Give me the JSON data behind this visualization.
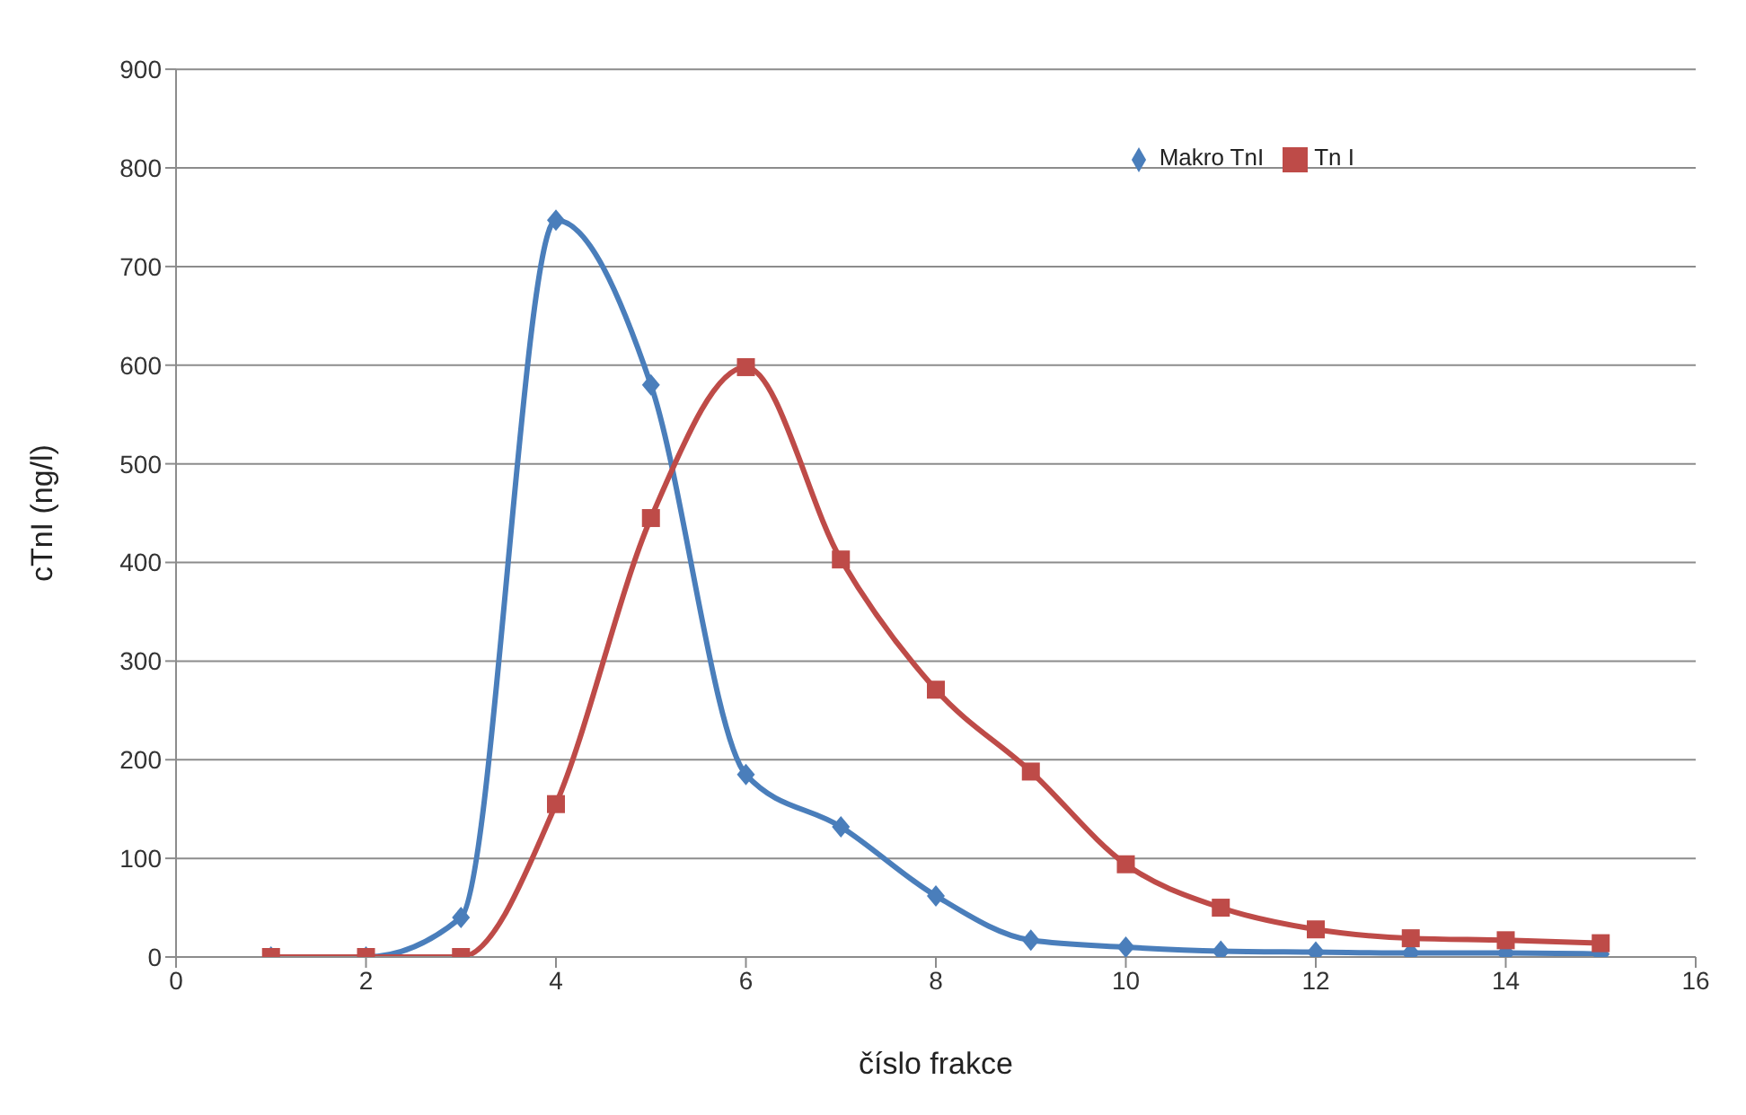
{
  "chart_data": {
    "type": "line",
    "xlabel": "číslo frakce",
    "ylabel": "cTnI (ng/l)",
    "x": [
      1,
      2,
      3,
      4,
      5,
      6,
      7,
      8,
      9,
      10,
      11,
      12,
      13,
      14,
      15
    ],
    "series": [
      {
        "name": "Makro TnI",
        "color": "#4a7ebb",
        "marker": "diamond",
        "values": [
          0,
          0,
          40,
          747,
          580,
          185,
          132,
          62,
          17,
          10,
          6,
          5,
          4,
          4,
          3
        ]
      },
      {
        "name": "Tn I",
        "color": "#be4b48",
        "marker": "square",
        "values": [
          0,
          0,
          0,
          155,
          445,
          598,
          403,
          271,
          188,
          94,
          50,
          28,
          19,
          17,
          14
        ]
      }
    ],
    "xlim": [
      0,
      16
    ],
    "xticks": [
      0,
      2,
      4,
      6,
      8,
      10,
      12,
      14,
      16
    ],
    "ylim": [
      0,
      900
    ],
    "yticks": [
      0,
      100,
      200,
      300,
      400,
      500,
      600,
      700,
      800,
      900
    ],
    "grid": "y",
    "legend": "top right",
    "line_style": "solid"
  }
}
